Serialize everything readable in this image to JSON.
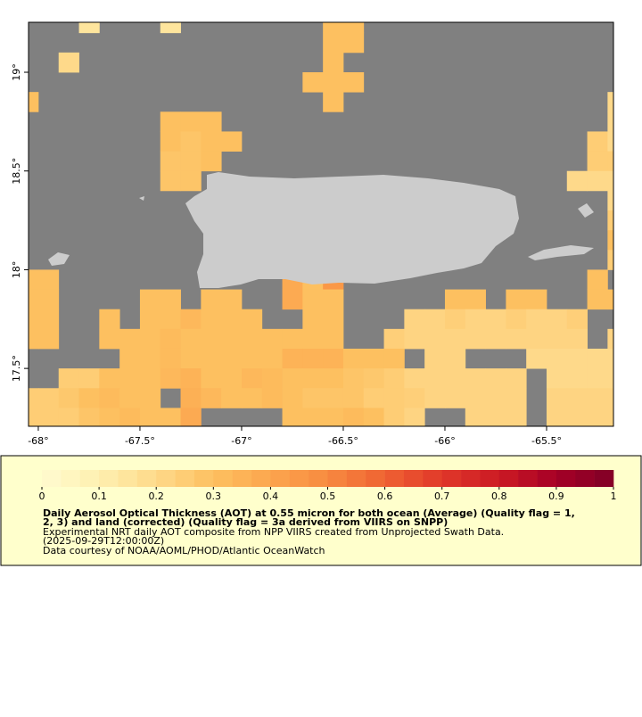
{
  "map": {
    "xlim": [
      -68.048,
      -65.171
    ],
    "ylim": [
      17.207,
      19.253
    ],
    "xticks": [
      {
        "value": -68,
        "label": "-68°"
      },
      {
        "value": -67.5,
        "label": "-67.5°"
      },
      {
        "value": -67,
        "label": "-67°"
      },
      {
        "value": -66.5,
        "label": "-66.5°"
      },
      {
        "value": -66,
        "label": "-66°"
      },
      {
        "value": -65.5,
        "label": "-65.5°"
      }
    ],
    "yticks": [
      {
        "value": 17.5,
        "label": "17.5°"
      },
      {
        "value": 18,
        "label": "18°"
      },
      {
        "value": 18.5,
        "label": "18.5°"
      },
      {
        "value": 19,
        "label": "19°"
      }
    ],
    "no_data_color": "#808080",
    "land_color": "#cccccc",
    "rows": [
      {
        "lat": 19.25,
        "lon": [
          -67.75,
          -67.35,
          -66.55,
          -66.45
        ],
        "aot": [
          0.15,
          0.15,
          0.3,
          0.3
        ]
      },
      {
        "lat": 19.15,
        "lon": [
          -66.55,
          -66.45
        ],
        "aot": [
          0.3,
          0.3
        ]
      },
      {
        "lat": 19.05,
        "lon": [
          -67.85,
          -66.55
        ],
        "aot": [
          0.2,
          0.3
        ]
      },
      {
        "lat": 18.95,
        "lon": [
          -66.65,
          -66.55,
          -66.45
        ],
        "aot": [
          0.3,
          0.3,
          0.3
        ]
      },
      {
        "lat": 18.85,
        "lon": [
          -68.05,
          -66.55,
          -65.15
        ],
        "aot": [
          0.3,
          0.3,
          0.2
        ]
      },
      {
        "lat": 18.75,
        "lon": [
          -67.35,
          -67.25,
          -67.15,
          -65.15
        ],
        "aot": [
          0.3,
          0.3,
          0.3,
          0.2
        ]
      },
      {
        "lat": 18.65,
        "lon": [
          -67.35,
          -67.25,
          -67.15,
          -67.05,
          -65.25,
          -65.15
        ],
        "aot": [
          0.3,
          0.28,
          0.3,
          0.3,
          0.25,
          0.2
        ]
      },
      {
        "lat": 18.55,
        "lon": [
          -67.35,
          -67.25,
          -67.15,
          -65.25,
          -65.15
        ],
        "aot": [
          0.28,
          0.28,
          0.3,
          0.25,
          0.25
        ]
      },
      {
        "lat": 18.45,
        "lon": [
          -67.35,
          -67.25,
          -65.35,
          -65.25,
          -65.15
        ],
        "aot": [
          0.28,
          0.28,
          0.2,
          0.2,
          0.2
        ]
      },
      {
        "lat": 18.35,
        "lon": [
          -65.15
        ],
        "aot": [
          0.2
        ]
      },
      {
        "lat": 18.25,
        "lon": [
          -65.15
        ],
        "aot": [
          0.25
        ]
      },
      {
        "lat": 18.15,
        "lon": [
          -65.15
        ],
        "aot": [
          0.3
        ]
      },
      {
        "lat": 18.05,
        "lon": [
          -65.15
        ],
        "aot": [
          0.25
        ]
      },
      {
        "lat": 17.95,
        "lon": [
          -68.05,
          -67.95,
          -66.75,
          -66.65,
          -66.55,
          -65.25
        ],
        "aot": [
          0.3,
          0.3,
          0.38,
          0.3,
          0.45,
          0.3
        ]
      },
      {
        "lat": 17.85,
        "lon": [
          -68.05,
          -67.95,
          -67.45,
          -67.35,
          -67.15,
          -67.05,
          -66.75,
          -66.65,
          -66.55,
          -65.95,
          -65.85,
          -65.65,
          -65.55,
          -65.25,
          -65.15
        ],
        "aot": [
          0.3,
          0.3,
          0.3,
          0.3,
          0.3,
          0.3,
          0.38,
          0.3,
          0.3,
          0.3,
          0.3,
          0.3,
          0.3,
          0.3,
          0.3
        ]
      },
      {
        "lat": 17.75,
        "lon": [
          -68.05,
          -67.95,
          -67.65,
          -67.45,
          -67.35,
          -67.25,
          -67.15,
          -67.05,
          -66.95,
          -66.65,
          -66.55,
          -66.15,
          -66.05,
          -65.95,
          -65.85,
          -65.75,
          -65.65,
          -65.55,
          -65.45,
          -65.35
        ],
        "aot": [
          0.3,
          0.3,
          0.3,
          0.3,
          0.3,
          0.33,
          0.3,
          0.3,
          0.3,
          0.3,
          0.3,
          0.22,
          0.22,
          0.24,
          0.22,
          0.22,
          0.24,
          0.22,
          0.22,
          0.24
        ]
      },
      {
        "lat": 17.65,
        "lon": [
          -68.05,
          -67.95,
          -67.65,
          -67.55,
          -67.45,
          -67.35,
          -67.25,
          -67.15,
          -67.05,
          -66.95,
          -66.85,
          -66.75,
          -66.65,
          -66.55,
          -66.25,
          -66.15,
          -66.05,
          -65.95,
          -65.85,
          -65.75,
          -65.65,
          -65.55,
          -65.45,
          -65.35,
          -65.15
        ],
        "aot": [
          0.3,
          0.3,
          0.3,
          0.3,
          0.3,
          0.32,
          0.3,
          0.3,
          0.3,
          0.3,
          0.3,
          0.3,
          0.3,
          0.3,
          0.24,
          0.22,
          0.22,
          0.22,
          0.22,
          0.22,
          0.22,
          0.22,
          0.22,
          0.22,
          0.22
        ]
      },
      {
        "lat": 17.55,
        "lon": [
          -67.55,
          -67.45,
          -67.35,
          -67.25,
          -67.15,
          -67.05,
          -66.95,
          -66.85,
          -66.75,
          -66.65,
          -66.55,
          -66.45,
          -66.35,
          -66.25,
          -66.05,
          -65.95,
          -65.55,
          -65.45,
          -65.35,
          -65.25,
          -65.15
        ],
        "aot": [
          0.3,
          0.3,
          0.32,
          0.3,
          0.3,
          0.3,
          0.3,
          0.3,
          0.35,
          0.35,
          0.35,
          0.3,
          0.3,
          0.3,
          0.22,
          0.22,
          0.2,
          0.2,
          0.2,
          0.2,
          0.2
        ]
      },
      {
        "lat": 17.45,
        "lon": [
          -67.85,
          -67.75,
          -67.65,
          -67.55,
          -67.45,
          -67.35,
          -67.25,
          -67.15,
          -67.05,
          -66.95,
          -66.85,
          -66.75,
          -66.65,
          -66.55,
          -66.45,
          -66.35,
          -66.25,
          -66.15,
          -66.05,
          -65.95,
          -65.85,
          -65.75,
          -65.65,
          -65.45,
          -65.35,
          -65.25,
          -65.15
        ],
        "aot": [
          0.25,
          0.25,
          0.3,
          0.3,
          0.3,
          0.33,
          0.35,
          0.3,
          0.3,
          0.33,
          0.32,
          0.3,
          0.3,
          0.3,
          0.28,
          0.27,
          0.25,
          0.22,
          0.22,
          0.22,
          0.22,
          0.22,
          0.22,
          0.2,
          0.2,
          0.2,
          0.2
        ]
      },
      {
        "lat": 17.35,
        "lon": [
          -68.05,
          -67.95,
          -67.85,
          -67.75,
          -67.65,
          -67.55,
          -67.45,
          -67.25,
          -67.15,
          -67.05,
          -66.95,
          -66.85,
          -66.75,
          -66.65,
          -66.55,
          -66.45,
          -66.35,
          -66.25,
          -66.15,
          -66.05,
          -65.95,
          -65.85,
          -65.75,
          -65.65,
          -65.45,
          -65.35,
          -65.25,
          -65.15
        ],
        "aot": [
          0.25,
          0.25,
          0.27,
          0.3,
          0.32,
          0.3,
          0.3,
          0.36,
          0.33,
          0.3,
          0.3,
          0.32,
          0.3,
          0.28,
          0.28,
          0.28,
          0.25,
          0.25,
          0.24,
          0.22,
          0.22,
          0.22,
          0.22,
          0.22,
          0.22,
          0.22,
          0.22,
          0.22
        ]
      },
      {
        "lat": 17.25,
        "lon": [
          -68.05,
          -67.95,
          -67.85,
          -67.75,
          -67.65,
          -67.55,
          -67.45,
          -67.35,
          -67.25,
          -66.75,
          -66.65,
          -66.55,
          -66.45,
          -66.35,
          -66.25,
          -66.15,
          -65.85,
          -65.75,
          -65.65,
          -65.45,
          -65.35,
          -65.25,
          -65.15
        ],
        "aot": [
          0.25,
          0.25,
          0.25,
          0.28,
          0.3,
          0.32,
          0.3,
          0.3,
          0.38,
          0.3,
          0.3,
          0.3,
          0.32,
          0.3,
          0.25,
          0.22,
          0.22,
          0.22,
          0.22,
          0.22,
          0.22,
          0.22,
          0.22
        ]
      }
    ]
  },
  "legend": {
    "range": [
      0,
      1
    ],
    "ticks": [
      0,
      0.1,
      0.2,
      0.3,
      0.4,
      0.5,
      0.6,
      0.7,
      0.8,
      0.9,
      1
    ],
    "colormap": [
      "#fffbd0",
      "#fef0b0",
      "#fed98a",
      "#fdc060",
      "#fca54e",
      "#f78a40",
      "#ef6232",
      "#e0382a",
      "#cc1a24",
      "#a50026",
      "#800026"
    ],
    "title": "Daily Aerosol Optical Thickness (AOT) at 0.55 micron for both ocean (Average) (Quality flag = 1,",
    "title_line2": "2, 3) and land (corrected) (Quality flag = 3a derived from VIIRS on SNPP)",
    "description": "Experimental NRT daily AOT composite from NPP VIIRS created from Unprojected Swath Data.",
    "date": "(2025-09-29T12:00:00Z)",
    "credit": "Data courtesy of NOAA/AOML/PHOD/Atlantic OceanWatch"
  }
}
